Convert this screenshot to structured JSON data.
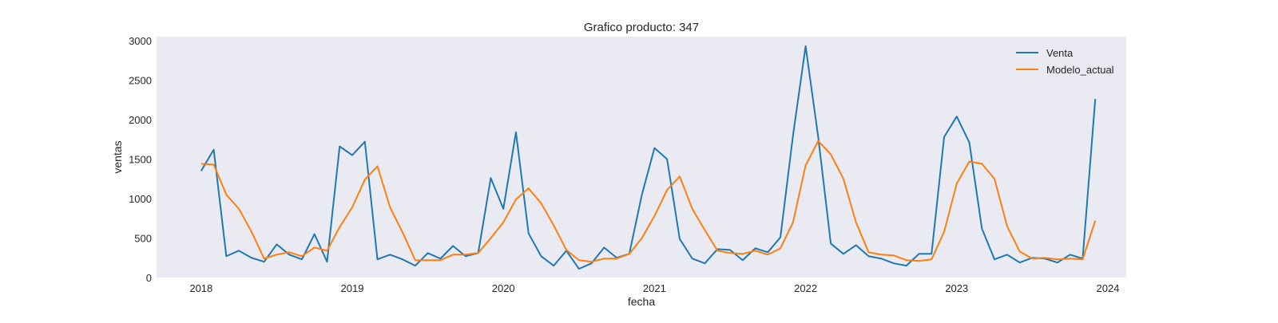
{
  "chart_data": {
    "type": "line",
    "title": "Grafico producto: 347",
    "xlabel": "fecha",
    "ylabel": "ventas",
    "xlim": [
      "2017-09-15",
      "2024-02-15"
    ],
    "ylim": [
      0,
      3050
    ],
    "x_ticks": [
      "2018",
      "2019",
      "2020",
      "2021",
      "2022",
      "2023",
      "2024"
    ],
    "y_ticks": [
      "0",
      "500",
      "1000",
      "1500",
      "2000",
      "2500",
      "3000"
    ],
    "grid": false,
    "legend_position": "top-right",
    "background_color": "#eaeaf2",
    "x": [
      "2018-01",
      "2018-02",
      "2018-03",
      "2018-04",
      "2018-05",
      "2018-06",
      "2018-07",
      "2018-08",
      "2018-09",
      "2018-10",
      "2018-11",
      "2018-12",
      "2019-01",
      "2019-02",
      "2019-03",
      "2019-04",
      "2019-05",
      "2019-06",
      "2019-07",
      "2019-08",
      "2019-09",
      "2019-10",
      "2019-11",
      "2019-12",
      "2020-01",
      "2020-02",
      "2020-03",
      "2020-04",
      "2020-05",
      "2020-06",
      "2020-07",
      "2020-08",
      "2020-09",
      "2020-10",
      "2020-11",
      "2020-12",
      "2021-01",
      "2021-02",
      "2021-03",
      "2021-04",
      "2021-05",
      "2021-06",
      "2021-07",
      "2021-08",
      "2021-09",
      "2021-10",
      "2021-11",
      "2021-12",
      "2022-01",
      "2022-02",
      "2022-03",
      "2022-04",
      "2022-05",
      "2022-06",
      "2022-07",
      "2022-08",
      "2022-09",
      "2022-10",
      "2022-11",
      "2022-12",
      "2023-01",
      "2023-02",
      "2023-03",
      "2023-04",
      "2023-05",
      "2023-06",
      "2023-07",
      "2023-08",
      "2023-09",
      "2023-10",
      "2023-11",
      "2023-12"
    ],
    "series": [
      {
        "name": "Venta",
        "color": "#1f77b4",
        "values": [
          1350,
          1620,
          270,
          340,
          250,
          200,
          420,
          290,
          230,
          550,
          200,
          1660,
          1550,
          1720,
          230,
          290,
          230,
          150,
          310,
          240,
          400,
          270,
          310,
          1260,
          870,
          1840,
          560,
          270,
          150,
          340,
          110,
          180,
          380,
          250,
          300,
          1050,
          1640,
          1500,
          490,
          240,
          180,
          360,
          350,
          220,
          370,
          320,
          510,
          1800,
          2930,
          1780,
          430,
          300,
          410,
          270,
          240,
          180,
          150,
          300,
          300,
          1780,
          2040,
          1710,
          620,
          230,
          290,
          190,
          250,
          240,
          190,
          290,
          240,
          2260
        ]
      },
      {
        "name": "Modelo_actual",
        "color": "#ff7f0e",
        "values": [
          1440,
          1430,
          1050,
          870,
          580,
          240,
          290,
          320,
          270,
          380,
          340,
          640,
          890,
          1240,
          1410,
          890,
          570,
          220,
          220,
          220,
          290,
          290,
          310,
          500,
          700,
          990,
          1130,
          940,
          660,
          350,
          220,
          200,
          240,
          240,
          300,
          500,
          780,
          1110,
          1280,
          870,
          600,
          340,
          310,
          300,
          340,
          290,
          370,
          700,
          1420,
          1730,
          1560,
          1250,
          700,
          320,
          290,
          280,
          220,
          210,
          230,
          580,
          1190,
          1470,
          1440,
          1250,
          650,
          330,
          240,
          250,
          230,
          240,
          230,
          720
        ]
      }
    ]
  }
}
